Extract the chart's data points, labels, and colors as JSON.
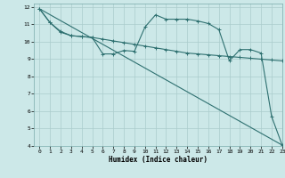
{
  "xlabel": "Humidex (Indice chaleur)",
  "background_color": "#cce8e8",
  "grid_color": "#aacccc",
  "line_color": "#2e7070",
  "xlim": [
    -0.5,
    23
  ],
  "ylim": [
    4,
    12.2
  ],
  "xticks": [
    0,
    1,
    2,
    3,
    4,
    5,
    6,
    7,
    8,
    9,
    10,
    11,
    12,
    13,
    14,
    15,
    16,
    17,
    18,
    19,
    20,
    21,
    22,
    23
  ],
  "yticks": [
    4,
    5,
    6,
    7,
    8,
    9,
    10,
    11,
    12
  ],
  "line1_x": [
    0,
    1,
    2,
    3,
    4,
    5,
    6,
    7,
    8,
    9,
    10,
    11,
    12,
    13,
    14,
    15,
    16,
    17,
    18,
    19,
    20,
    21,
    22,
    23
  ],
  "line1_y": [
    11.9,
    11.1,
    10.6,
    10.35,
    10.3,
    10.25,
    9.3,
    9.3,
    9.5,
    9.45,
    10.85,
    11.55,
    11.3,
    11.3,
    11.3,
    11.2,
    11.05,
    10.7,
    8.9,
    9.55,
    9.55,
    9.35,
    5.7,
    4.05
  ],
  "line2_x": [
    0,
    23
  ],
  "line2_y": [
    11.9,
    4.05
  ],
  "line3_x": [
    0,
    1,
    2,
    3,
    4,
    5,
    6,
    7,
    8,
    9,
    10,
    11,
    12,
    13,
    14,
    15,
    16,
    17,
    18,
    19,
    20,
    21,
    22,
    23
  ],
  "line3_y": [
    11.9,
    11.1,
    10.55,
    10.35,
    10.3,
    10.25,
    10.15,
    10.05,
    9.95,
    9.85,
    9.75,
    9.65,
    9.55,
    9.45,
    9.35,
    9.3,
    9.25,
    9.2,
    9.15,
    9.1,
    9.05,
    9.0,
    8.95,
    8.9
  ],
  "font_family": "monospace"
}
